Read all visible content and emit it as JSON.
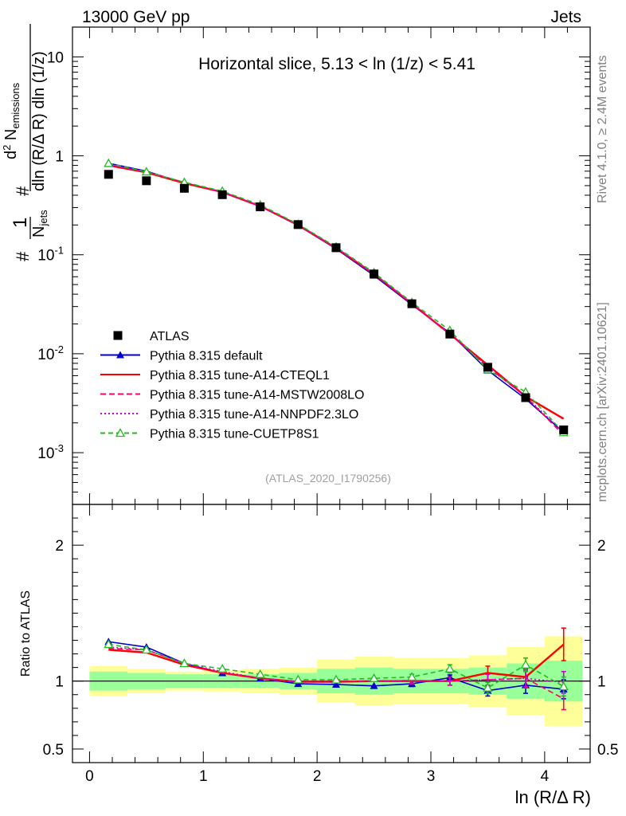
{
  "header": {
    "energy_label": "13000 GeV pp",
    "jets_label": "Jets",
    "rivet_label": "Rivet 4.1.0, ≥ 2.4M events",
    "mcplots_label": "mcplots.cern.ch [arXiv:2401.10621]",
    "analysis_label": "(ATLAS_2020_I1790256)"
  },
  "chart_data": {
    "type": "line",
    "title": "Horizontal slice, 5.13 < ln (1/z) < 5.41",
    "xlabel": "ln (R/Δ R)",
    "ylabel": "#(1/N_jets) #(d² N_emissions / dln (R/Δ R) dln (1/z))",
    "ylabel_ratio": "Ratio to ATLAS",
    "xlim": [
      -0.15,
      4.4
    ],
    "ylim": [
      0.0003,
      20
    ],
    "ylim_ratio": [
      0.4,
      2.3
    ],
    "yscale": "log",
    "x_ticks": [
      "0",
      "1",
      "2",
      "3",
      "4"
    ],
    "y_ticks": [
      "10",
      "1",
      "10^-1",
      "10^-2",
      "10^-3"
    ],
    "ratio_ticks": [
      "2",
      "1",
      "0.5"
    ],
    "legend_position": "lower-left",
    "x": [
      0.167,
      0.5,
      0.833,
      1.167,
      1.5,
      1.833,
      2.167,
      2.5,
      2.833,
      3.167,
      3.5,
      3.833,
      4.167
    ],
    "x_edges": [
      0,
      0.333,
      0.667,
      1.0,
      1.333,
      1.667,
      2.0,
      2.333,
      2.667,
      3.0,
      3.333,
      3.667,
      4.0,
      4.333
    ],
    "band_inner": [
      0.07,
      0.06,
      0.05,
      0.05,
      0.05,
      0.06,
      0.09,
      0.1,
      0.09,
      0.09,
      0.1,
      0.13,
      0.15
    ],
    "band_outer": [
      0.11,
      0.09,
      0.07,
      0.08,
      0.09,
      0.1,
      0.16,
      0.18,
      0.17,
      0.17,
      0.19,
      0.25,
      0.33
    ],
    "data": {
      "name": "ATLAS",
      "values": [
        0.65,
        0.56,
        0.47,
        0.405,
        0.305,
        0.202,
        0.118,
        0.064,
        0.032,
        0.0158,
        0.0073,
        0.0036,
        0.0017
      ]
    },
    "series": [
      {
        "name": "Pythia 8.315 default",
        "color": "#0000cc",
        "dash": "",
        "marker": "triangle-filled",
        "values": [
          0.84,
          0.7,
          0.53,
          0.43,
          0.31,
          0.198,
          0.115,
          0.0618,
          0.0313,
          0.0162,
          0.0068,
          0.0035,
          0.0016
        ],
        "ratio": [
          1.29,
          1.25,
          1.13,
          1.06,
          1.02,
          0.98,
          0.975,
          0.965,
          0.98,
          1.025,
          0.93,
          0.97,
          0.94
        ],
        "ratio_err": [
          0.01,
          0.01,
          0.01,
          0.01,
          0.01,
          0.01,
          0.01,
          0.01,
          0.02,
          0.02,
          0.04,
          0.06,
          0.07
        ]
      },
      {
        "name": "Pythia 8.315 tune-A14-CTEQL1",
        "color": "#ff0000",
        "dash": "",
        "marker": "none",
        "values": [
          0.8,
          0.68,
          0.53,
          0.43,
          0.31,
          0.2,
          0.117,
          0.064,
          0.032,
          0.0158,
          0.0077,
          0.0037,
          0.0022
        ],
        "ratio": [
          1.23,
          1.21,
          1.12,
          1.06,
          1.02,
          0.995,
          0.995,
          1.0,
          1.0,
          1.0,
          1.06,
          1.03,
          1.27
        ],
        "ratio_err": [
          0.01,
          0.01,
          0.01,
          0.01,
          0.01,
          0.01,
          0.01,
          0.01,
          0.02,
          0.03,
          0.05,
          0.08,
          0.12
        ]
      },
      {
        "name": "Pythia 8.315 tune-A14-MSTW2008LO",
        "color": "#ff0066",
        "dash": "7,4",
        "marker": "none",
        "values": [
          0.81,
          0.69,
          0.54,
          0.43,
          0.31,
          0.2,
          0.117,
          0.064,
          0.032,
          0.0159,
          0.0073,
          0.0037,
          0.0015
        ],
        "ratio": [
          1.24,
          1.23,
          1.13,
          1.06,
          1.02,
          0.995,
          0.995,
          1.0,
          1.005,
          1.0,
          1.01,
          1.02,
          0.87
        ],
        "ratio_err": [
          0.01,
          0.01,
          0.01,
          0.01,
          0.01,
          0.01,
          0.01,
          0.01,
          0.02,
          0.03,
          0.04,
          0.07,
          0.08
        ]
      },
      {
        "name": "Pythia 8.315 tune-A14-NNPDF2.3LO",
        "color": "#cc00cc",
        "dash": "2,3",
        "marker": "none",
        "values": [
          0.81,
          0.69,
          0.54,
          0.43,
          0.31,
          0.2,
          0.117,
          0.064,
          0.032,
          0.016,
          0.0074,
          0.0037,
          0.0016
        ],
        "ratio": [
          1.25,
          1.23,
          1.13,
          1.07,
          1.02,
          0.995,
          0.995,
          1.0,
          1.0,
          1.0,
          1.01,
          1.02,
          0.99
        ],
        "ratio_err": [
          0.01,
          0.01,
          0.01,
          0.01,
          0.01,
          0.01,
          0.01,
          0.01,
          0.02,
          0.03,
          0.04,
          0.06,
          0.08
        ]
      },
      {
        "name": "Pythia 8.315 tune-CUETP8S1",
        "color": "#22bb22",
        "dash": "6,4",
        "marker": "triangle-open",
        "values": [
          0.84,
          0.69,
          0.54,
          0.44,
          0.32,
          0.204,
          0.12,
          0.066,
          0.033,
          0.0172,
          0.0069,
          0.0041,
          0.0016
        ],
        "ratio": [
          1.27,
          1.23,
          1.13,
          1.09,
          1.05,
          1.01,
          1.01,
          1.02,
          1.03,
          1.09,
          0.95,
          1.12,
          0.96
        ],
        "ratio_err": [
          0.01,
          0.01,
          0.01,
          0.01,
          0.01,
          0.01,
          0.01,
          0.01,
          0.02,
          0.03,
          0.04,
          0.05,
          0.07
        ]
      }
    ]
  }
}
